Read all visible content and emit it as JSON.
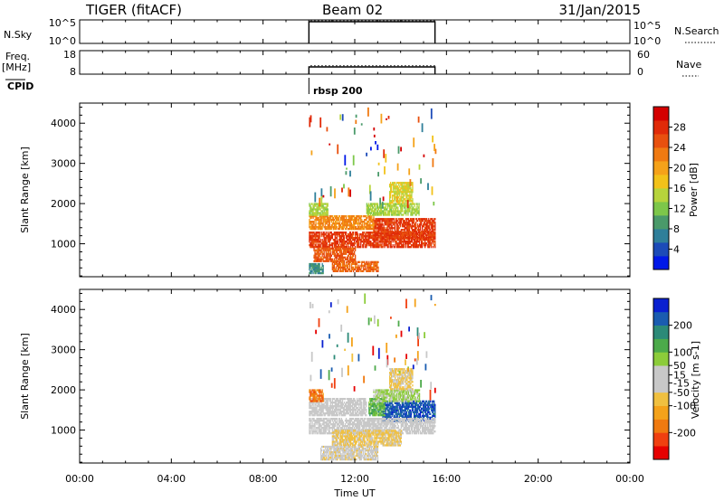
{
  "header": {
    "station": "TIGER (fitACF)",
    "beam": "Beam 02",
    "date": "31/Jan/2015"
  },
  "params": {
    "nsky_label": "N.Sky",
    "nsky_ticks": [
      "10^5",
      "10^0"
    ],
    "nsky_right_ticks": [
      "10^5",
      "10^0"
    ],
    "nsearch_label": "N.Search",
    "freq_label": [
      "Freq.",
      "[MHz]"
    ],
    "freq_ticks": [
      "18",
      "8"
    ],
    "nave_ticks": [
      "60",
      "0"
    ],
    "nave_label": "Nave",
    "cpid_label": "CPID",
    "cpid_value": "rbsp 200"
  },
  "time_axis": {
    "label": "Time UT",
    "ticks": [
      "00:00",
      "04:00",
      "08:00",
      "12:00",
      "16:00",
      "20:00",
      "00:00"
    ],
    "hours": [
      0,
      4,
      8,
      12,
      16,
      20,
      24
    ]
  },
  "colors": {
    "power_scale": [
      "#0018e8",
      "#1c4bb8",
      "#2f7f9a",
      "#4a9a6a",
      "#7dc74a",
      "#b7d43c",
      "#f2c21a",
      "#f5a21a",
      "#f07a12",
      "#e8500e",
      "#e02a08",
      "#d40000"
    ],
    "velocity_scale": [
      "#e60000",
      "#f04010",
      "#f07a10",
      "#f4a21a",
      "#f0c040",
      "#c8c8c8",
      "#c8c8c8",
      "#8ccc3a",
      "#4caa4a",
      "#2c8a78",
      "#1a5cb0",
      "#0a20d0"
    ]
  },
  "chart_data": [
    {
      "type": "heatmap",
      "name": "power-panel",
      "x_range_hours": [
        0,
        24
      ],
      "ylabel": "Slant Range [km]",
      "ylim": [
        180,
        4500
      ],
      "y_ticks": [
        1000,
        2000,
        3000,
        4000
      ],
      "colorbar": {
        "label": "Power [dB]",
        "range": [
          0,
          32
        ],
        "ticks": [
          4,
          8,
          12,
          16,
          20,
          24,
          28
        ]
      },
      "data_time_range_hours": [
        10.0,
        15.5
      ],
      "regions": [
        {
          "t0": 10.0,
          "t1": 15.5,
          "r0": 900,
          "r1": 1300,
          "value": 27
        },
        {
          "t0": 12.8,
          "t1": 15.5,
          "r0": 1100,
          "r1": 1600,
          "value": 27
        },
        {
          "t0": 10.0,
          "t1": 12.8,
          "r0": 1350,
          "r1": 1700,
          "value": 22
        },
        {
          "t0": 10.2,
          "t1": 12.0,
          "r0": 550,
          "r1": 900,
          "value": 25
        },
        {
          "t0": 11.0,
          "t1": 13.0,
          "r0": 300,
          "r1": 550,
          "value": 24
        },
        {
          "t0": 10.0,
          "t1": 10.8,
          "r0": 1700,
          "r1": 2000,
          "value": 14
        },
        {
          "t0": 12.5,
          "t1": 14.8,
          "r0": 1700,
          "r1": 2000,
          "value": 14
        },
        {
          "t0": 13.5,
          "t1": 14.5,
          "r0": 2000,
          "r1": 2500,
          "value": 16
        },
        {
          "t0": 10.0,
          "t1": 10.6,
          "r0": 250,
          "r1": 500,
          "value": 8
        }
      ]
    },
    {
      "type": "heatmap",
      "name": "velocity-panel",
      "x_range_hours": [
        0,
        24
      ],
      "ylabel": "Slant Range [km]",
      "ylim": [
        180,
        4500
      ],
      "y_ticks": [
        1000,
        2000,
        3000,
        4000
      ],
      "colorbar": {
        "label": "Velocity [m s-1]",
        "range": [
          -300,
          300
        ],
        "tick_values": [
          -200,
          -100,
          -50,
          -15,
          15,
          50,
          100,
          200
        ],
        "ticks": [
          "-200",
          "-100",
          "-50",
          "-15",
          "15",
          "50",
          "100",
          "200"
        ]
      },
      "data_time_range_hours": [
        10.0,
        15.5
      ],
      "regions": [
        {
          "t0": 13.2,
          "t1": 15.5,
          "r0": 1200,
          "r1": 1700,
          "value": 230
        },
        {
          "t0": 12.6,
          "t1": 13.3,
          "r0": 1350,
          "r1": 1800,
          "value": 120
        },
        {
          "t0": 10.0,
          "t1": 12.5,
          "r0": 1350,
          "r1": 1800,
          "value": -5
        },
        {
          "t0": 10.0,
          "t1": 10.6,
          "r0": 1700,
          "r1": 2000,
          "value": -180
        },
        {
          "t0": 10.0,
          "t1": 15.5,
          "r0": 900,
          "r1": 1300,
          "value": -5
        },
        {
          "t0": 11.0,
          "t1": 14.0,
          "r0": 600,
          "r1": 1000,
          "value": -60
        },
        {
          "t0": 10.5,
          "t1": 13.0,
          "r0": 250,
          "r1": 600,
          "value": -30
        },
        {
          "t0": 12.8,
          "t1": 14.8,
          "r0": 1700,
          "r1": 2000,
          "value": 60
        },
        {
          "t0": 13.5,
          "t1": 14.5,
          "r0": 2000,
          "r1": 2500,
          "value": -60
        }
      ]
    }
  ]
}
